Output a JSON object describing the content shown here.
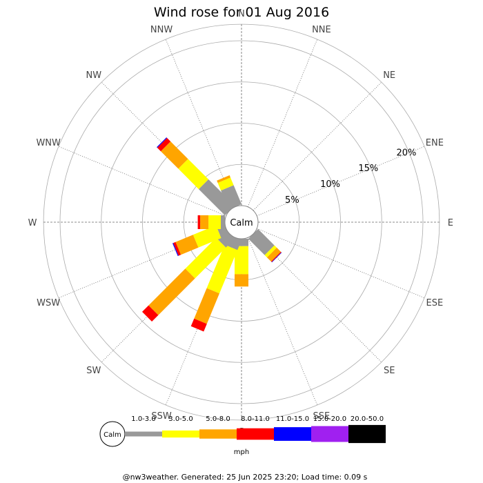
{
  "title": "Wind rose for 01 Aug 2016",
  "footer": "@nw3weather. Generated: 25 Jun 2025 23:20; Load time: 0.09 s",
  "chart_data": {
    "type": "wind-rose",
    "title": "Wind rose for 01 Aug 2016",
    "directions": [
      "N",
      "NNE",
      "NE",
      "ENE",
      "E",
      "ESE",
      "SE",
      "SSE",
      "S",
      "SSW",
      "SW",
      "WSW",
      "W",
      "WNW",
      "NW",
      "NNW"
    ],
    "radial_ticks": [
      5,
      10,
      15,
      20
    ],
    "radial_tick_labels": [
      "5%",
      "10%",
      "15%",
      "20%"
    ],
    "radial_max": 22,
    "calm_label": "Calm",
    "units_label": "mph",
    "speed_bins": [
      {
        "label": "1.0-3.0",
        "color": "#999999"
      },
      {
        "label": "3.0-5.0",
        "color": "#ffff00"
      },
      {
        "label": "5.0-8.0",
        "color": "#ffa500"
      },
      {
        "label": "8.0-11.0",
        "color": "#ff0000"
      },
      {
        "label": "11.0-15.0",
        "color": "#0000ff"
      },
      {
        "label": "15.0-20.0",
        "color": "#a020f0"
      },
      {
        "label": "20.0-50.0",
        "color": "#000000"
      }
    ],
    "cumulative_percent": {
      "N": [],
      "NNE": [],
      "NE": [],
      "ENE": [],
      "E": [],
      "ESE": [],
      "SE": [
        0,
        2.8,
        3.2,
        3.9,
        4.0,
        4.05
      ],
      "SSE": [],
      "S": [
        0,
        0.9,
        4.3,
        5.8
      ],
      "SSW": [
        0,
        1.3,
        7.0,
        11.0,
        12.0
      ],
      "SW": [
        0,
        1.5,
        6.8,
        13.1,
        14.2
      ],
      "WSW": [
        0,
        1.0,
        4.0,
        6.3,
        6.6,
        6.7
      ],
      "W": [
        0,
        0.5,
        2.0,
        3.0,
        3.3
      ],
      "WNW": [],
      "NW": [
        0,
        4.5,
        8.0,
        11.0,
        11.6,
        11.7
      ],
      "NNW": [
        0,
        2.5,
        3.5,
        3.8
      ]
    }
  }
}
